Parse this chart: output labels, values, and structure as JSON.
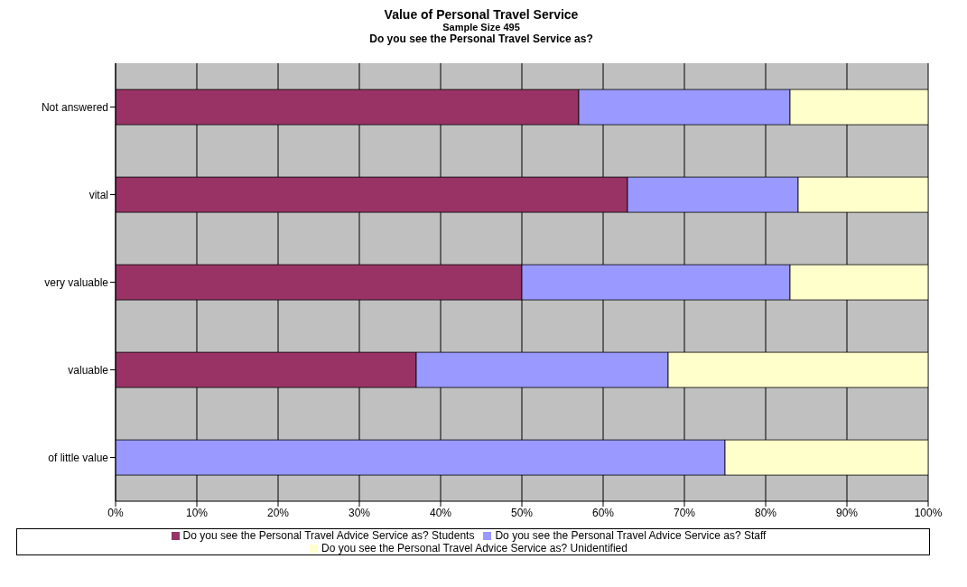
{
  "chart_data": {
    "type": "bar",
    "orientation": "horizontal",
    "stacked": true,
    "title": "Value of Personal Travel Service",
    "subtitle": "Sample Size 495",
    "annotations": [
      "Do you see the Personal Travel Service as?"
    ],
    "categories": [
      "Not answered",
      "vital",
      "very valuable",
      "valuable",
      "of little value"
    ],
    "series": [
      {
        "name": "Do you see the Personal Travel Advice Service as? Students",
        "color": "#993366",
        "values": [
          57,
          63,
          50,
          37,
          0
        ]
      },
      {
        "name": "Do you see the Personal Travel Advice Service as? Staff",
        "color": "#9999ff",
        "values": [
          26,
          21,
          33,
          31,
          75
        ]
      },
      {
        "name": "Do you see the Personal Travel Advice Service as? Unidentified",
        "color": "#ffffcc",
        "values": [
          17,
          16,
          17,
          32,
          25
        ]
      }
    ],
    "xlim": [
      0,
      100
    ],
    "xticks": [
      {
        "value": 0,
        "label": "0%"
      },
      {
        "value": 10,
        "label": "10%"
      },
      {
        "value": 20,
        "label": "20%"
      },
      {
        "value": 30,
        "label": "30%"
      },
      {
        "value": 40,
        "label": "40%"
      },
      {
        "value": 50,
        "label": "50%"
      },
      {
        "value": 60,
        "label": "60%"
      },
      {
        "value": 70,
        "label": "70%"
      },
      {
        "value": 80,
        "label": "80%"
      },
      {
        "value": 90,
        "label": "90%"
      },
      {
        "value": 100,
        "label": "100%"
      }
    ],
    "grid": "x",
    "legend": "bottom"
  }
}
